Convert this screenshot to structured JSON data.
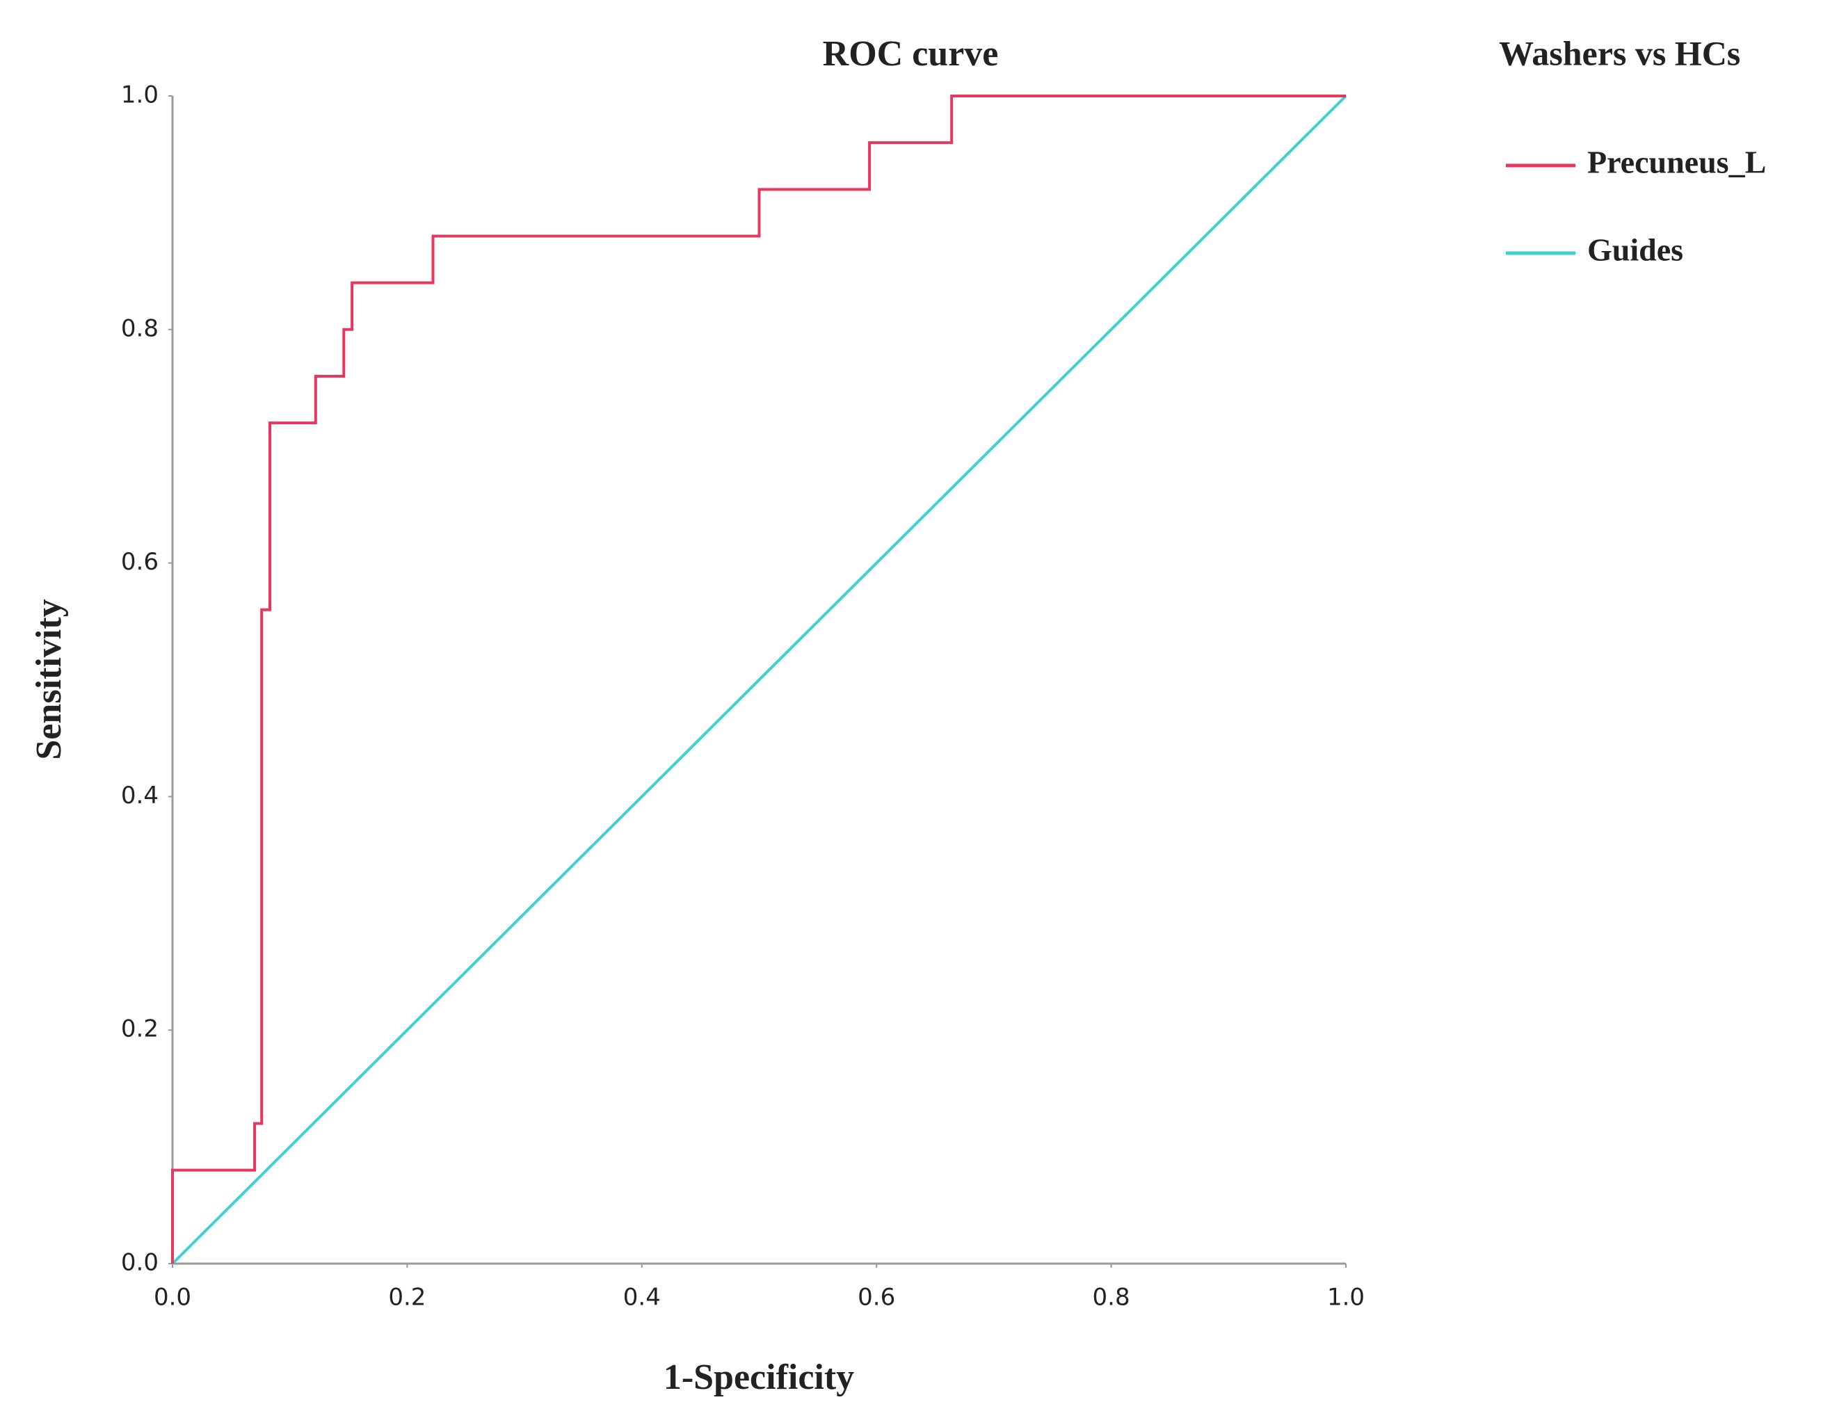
{
  "chart_data": {
    "type": "line",
    "title": "ROC curve",
    "x_label": "1-Specificity",
    "y_label": "Sensitivity",
    "legend_title": "Washers vs HCs",
    "legend": "right",
    "xlim": [
      0,
      1
    ],
    "ylim": [
      0,
      1
    ],
    "xticks": [
      {
        "value": 0,
        "label": "0.0"
      },
      0.2,
      0.4,
      0.6,
      0.8,
      {
        "value": 1,
        "label": "1.0"
      }
    ],
    "yticks": [
      {
        "value": 0,
        "label": "0.0"
      },
      0.2,
      0.4,
      0.6,
      0.8,
      {
        "value": 1,
        "label": "1.0"
      }
    ],
    "series": [
      {
        "name": "Precuneus_L",
        "color": "#e8375f",
        "x": [
          0,
          0,
          0.07,
          0.07,
          0.076,
          0.076,
          0.083,
          0.083,
          0.122,
          0.122,
          0.146,
          0.146,
          0.153,
          0.153,
          0.222,
          0.222,
          0.5,
          0.5,
          0.594,
          0.594,
          0.664,
          0.664,
          1
        ],
        "y": [
          0,
          0.08,
          0.08,
          0.12,
          0.12,
          0.56,
          0.56,
          0.72,
          0.72,
          0.76,
          0.76,
          0.8,
          0.8,
          0.84,
          0.84,
          0.88,
          0.88,
          0.92,
          0.92,
          0.96,
          0.96,
          1,
          1
        ]
      },
      {
        "name": "Guides",
        "color": "#3fd0d6",
        "x": [
          0,
          1
        ],
        "y": [
          0,
          1
        ]
      }
    ]
  }
}
